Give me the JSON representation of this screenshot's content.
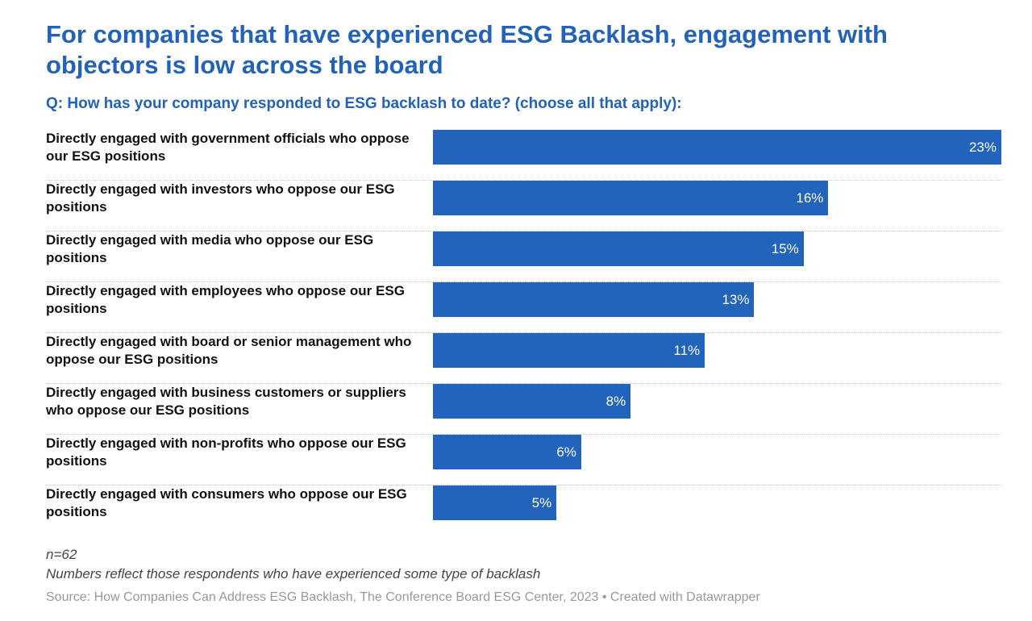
{
  "chart_data": {
    "type": "bar",
    "orientation": "horizontal",
    "title": "For companies that have experienced ESG Backlash, engagement with objectors is low across the board",
    "subtitle": "Q: How has your company responded to ESG backlash to date? (choose all that apply):",
    "categories": [
      "Directly engaged with government officials who oppose our ESG positions",
      "Directly engaged with investors who oppose our ESG positions",
      "Directly engaged with media who oppose our ESG positions",
      "Directly engaged with employees who oppose our ESG positions",
      "Directly engaged with board or senior management who oppose our ESG positions",
      "Directly engaged with business customers or suppliers who oppose our ESG positions",
      "Directly engaged with non-profits who oppose our ESG positions",
      "Directly engaged with consumers who oppose our ESG positions"
    ],
    "values": [
      23,
      16,
      15,
      13,
      11,
      8,
      6,
      5
    ],
    "value_labels": [
      "23%",
      "16%",
      "15%",
      "13%",
      "11%",
      "8%",
      "6%",
      "5%"
    ],
    "xlim": [
      0,
      23
    ],
    "grid": false,
    "bar_color": "#2263bb"
  },
  "notes": {
    "n": "n=62",
    "description": "Numbers reflect those respondents who have experienced some type of backlash",
    "source": "Source: How Companies Can Address ESG Backlash, The Conference Board ESG Center, 2023 • Created with Datawrapper"
  }
}
